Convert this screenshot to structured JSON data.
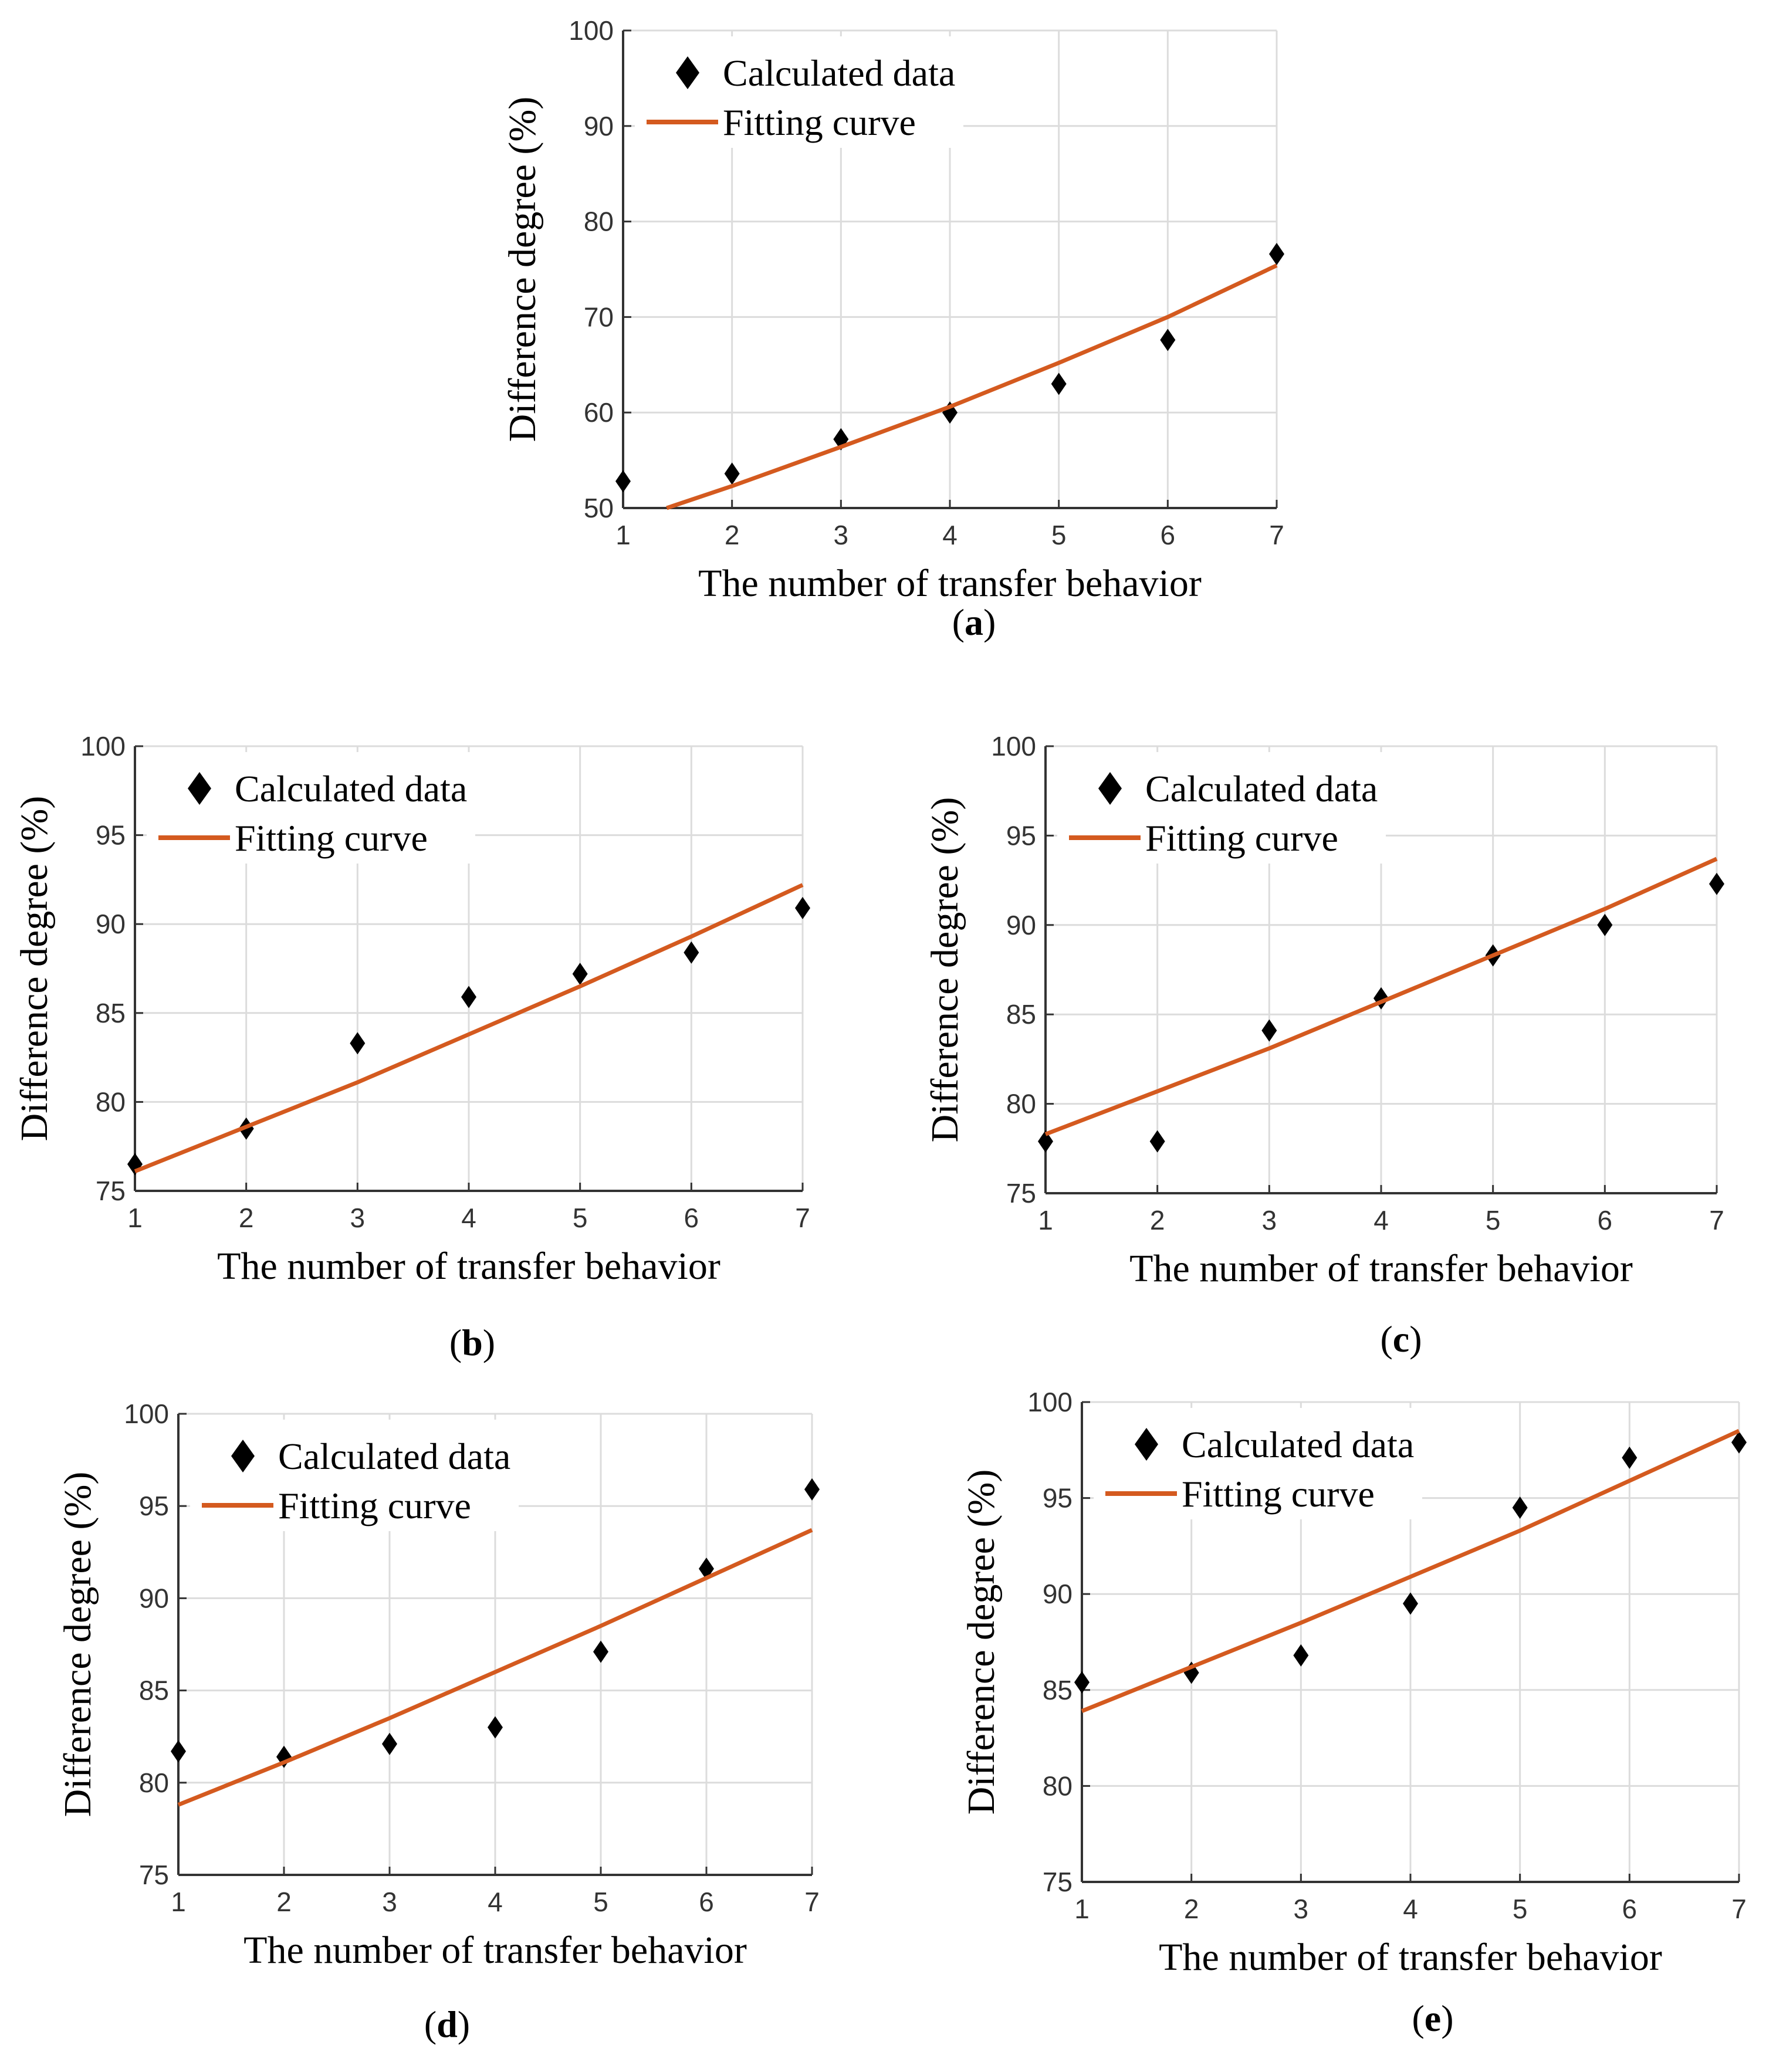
{
  "colors": {
    "marker": "#000000",
    "fit": "#d45a1f",
    "grid": "#dcdcdc",
    "axis": "#333333"
  },
  "chart_data": [
    {
      "type": "scatter",
      "panel_label": "a",
      "xlabel": "The number of transfer behavior",
      "ylabel": "Difference degree (%)",
      "xlim": [
        1,
        7
      ],
      "ylim": [
        50,
        100
      ],
      "xticks": [
        "1",
        "2",
        "3",
        "4",
        "5",
        "6",
        "7"
      ],
      "yticks": [
        "50",
        "60",
        "70",
        "80",
        "90",
        "100"
      ],
      "grid": true,
      "legend_position": "top-left",
      "series": [
        {
          "name": "Calculated data",
          "kind": "markers",
          "x": [
            1,
            2,
            3,
            4,
            5,
            6,
            7
          ],
          "y": [
            52.8,
            53.6,
            57.2,
            60.0,
            63.0,
            67.6,
            76.6
          ]
        },
        {
          "name": "Fitting curve",
          "kind": "line",
          "x": [
            1.4,
            2,
            3,
            4,
            5,
            6,
            7
          ],
          "y": [
            50.0,
            52.3,
            56.4,
            60.6,
            65.2,
            70.0,
            75.4
          ]
        }
      ]
    },
    {
      "type": "scatter",
      "panel_label": "b",
      "xlabel": "The number of transfer behavior",
      "ylabel": "Difference degree (%)",
      "xlim": [
        1,
        7
      ],
      "ylim": [
        75,
        100
      ],
      "xticks": [
        "1",
        "2",
        "3",
        "4",
        "5",
        "6",
        "7"
      ],
      "yticks": [
        "75",
        "80",
        "85",
        "90",
        "95",
        "100"
      ],
      "grid": true,
      "legend_position": "top-left",
      "series": [
        {
          "name": "Calculated data",
          "kind": "markers",
          "x": [
            1,
            2,
            3,
            4,
            5,
            6,
            7
          ],
          "y": [
            76.5,
            78.5,
            83.3,
            85.9,
            87.2,
            88.4,
            90.9
          ]
        },
        {
          "name": "Fitting curve",
          "kind": "line",
          "x": [
            1,
            2,
            3,
            4,
            5,
            6,
            7
          ],
          "y": [
            76.1,
            78.6,
            81.1,
            83.8,
            86.5,
            89.3,
            92.2
          ]
        }
      ]
    },
    {
      "type": "scatter",
      "panel_label": "c",
      "xlabel": "The number of transfer behavior",
      "ylabel": "Difference degree (%)",
      "xlim": [
        1,
        7
      ],
      "ylim": [
        75,
        100
      ],
      "xticks": [
        "1",
        "2",
        "3",
        "4",
        "5",
        "6",
        "7"
      ],
      "yticks": [
        "75",
        "80",
        "85",
        "90",
        "95",
        "100"
      ],
      "grid": true,
      "legend_position": "top-left",
      "series": [
        {
          "name": "Calculated data",
          "kind": "markers",
          "x": [
            1,
            2,
            3,
            4,
            5,
            6,
            7
          ],
          "y": [
            77.9,
            77.9,
            84.1,
            85.9,
            88.3,
            90.0,
            92.3
          ]
        },
        {
          "name": "Fitting curve",
          "kind": "line",
          "x": [
            1,
            2,
            3,
            4,
            5,
            6,
            7
          ],
          "y": [
            78.3,
            80.7,
            83.1,
            85.7,
            88.3,
            90.9,
            93.7
          ]
        }
      ]
    },
    {
      "type": "scatter",
      "panel_label": "d",
      "xlabel": "The number of transfer behavior",
      "ylabel": "Difference degree (%)",
      "xlim": [
        1,
        7
      ],
      "ylim": [
        75,
        100
      ],
      "xticks": [
        "1",
        "2",
        "3",
        "4",
        "5",
        "6",
        "7"
      ],
      "yticks": [
        "75",
        "80",
        "85",
        "90",
        "95",
        "100"
      ],
      "grid": true,
      "legend_position": "top-left",
      "series": [
        {
          "name": "Calculated data",
          "kind": "markers",
          "x": [
            1,
            2,
            3,
            4,
            5,
            6,
            7
          ],
          "y": [
            81.7,
            81.4,
            82.1,
            83.0,
            87.1,
            91.6,
            95.9
          ]
        },
        {
          "name": "Fitting curve",
          "kind": "line",
          "x": [
            1,
            2,
            3,
            4,
            5,
            6,
            7
          ],
          "y": [
            78.8,
            81.1,
            83.5,
            86.0,
            88.5,
            91.1,
            93.7
          ]
        }
      ]
    },
    {
      "type": "scatter",
      "panel_label": "e",
      "xlabel": "The number of transfer behavior",
      "ylabel": "Difference degree (%)",
      "xlim": [
        1,
        7
      ],
      "ylim": [
        75,
        100
      ],
      "xticks": [
        "1",
        "2",
        "3",
        "4",
        "5",
        "6",
        "7"
      ],
      "yticks": [
        "75",
        "80",
        "85",
        "90",
        "95",
        "100"
      ],
      "grid": true,
      "legend_position": "top-left",
      "series": [
        {
          "name": "Calculated data",
          "kind": "markers",
          "x": [
            1,
            2,
            3,
            4,
            5,
            6,
            7
          ],
          "y": [
            85.4,
            85.9,
            86.8,
            89.5,
            94.5,
            97.1,
            97.9
          ]
        },
        {
          "name": "Fitting curve",
          "kind": "line",
          "x": [
            1,
            2,
            3,
            4,
            5,
            6,
            7
          ],
          "y": [
            83.9,
            86.2,
            88.5,
            90.9,
            93.3,
            95.9,
            98.5
          ]
        }
      ]
    }
  ]
}
